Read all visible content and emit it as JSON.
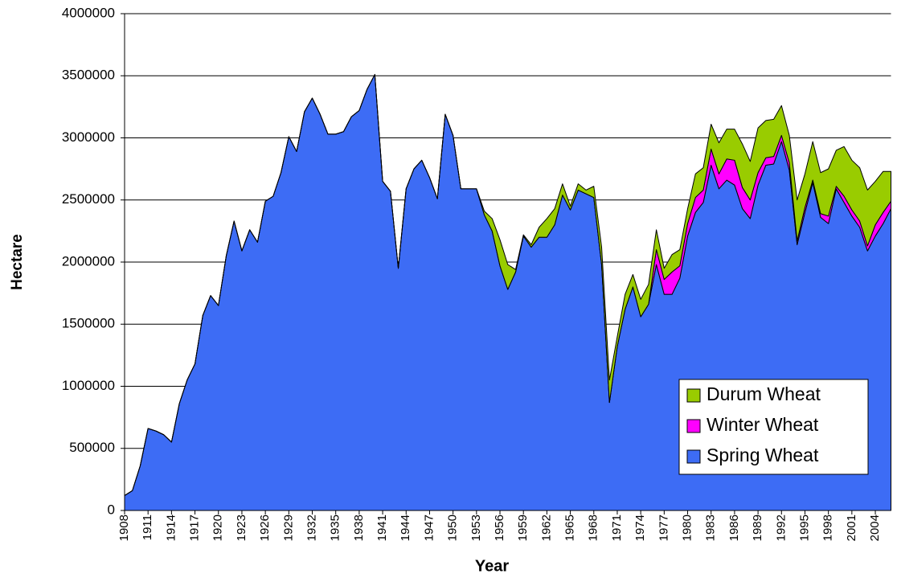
{
  "chart_data": {
    "type": "area",
    "stacked": true,
    "x_label": "Year",
    "y_label": "Hectare",
    "x": [
      1908,
      1909,
      1910,
      1911,
      1912,
      1913,
      1914,
      1915,
      1916,
      1917,
      1918,
      1919,
      1920,
      1921,
      1922,
      1923,
      1924,
      1925,
      1926,
      1927,
      1928,
      1929,
      1930,
      1931,
      1932,
      1933,
      1934,
      1935,
      1936,
      1937,
      1938,
      1939,
      1940,
      1941,
      1942,
      1943,
      1944,
      1945,
      1946,
      1947,
      1948,
      1949,
      1950,
      1951,
      1952,
      1953,
      1954,
      1955,
      1956,
      1957,
      1958,
      1959,
      1960,
      1961,
      1962,
      1963,
      1964,
      1965,
      1966,
      1967,
      1968,
      1969,
      1970,
      1971,
      1972,
      1973,
      1974,
      1975,
      1976,
      1977,
      1978,
      1979,
      1980,
      1981,
      1982,
      1983,
      1984,
      1985,
      1986,
      1987,
      1988,
      1989,
      1990,
      1991,
      1992,
      1993,
      1994,
      1995,
      1996,
      1997,
      1998,
      1999,
      2000,
      2001,
      2002,
      2003,
      2004,
      2005,
      2006
    ],
    "xlim": [
      1908,
      2006
    ],
    "xticks": [
      1908,
      1911,
      1914,
      1917,
      1920,
      1923,
      1926,
      1929,
      1932,
      1935,
      1938,
      1941,
      1944,
      1947,
      1950,
      1953,
      1956,
      1959,
      1962,
      1965,
      1968,
      1971,
      1974,
      1977,
      1980,
      1983,
      1986,
      1989,
      1992,
      1995,
      1998,
      2001,
      2004
    ],
    "ylim": [
      0,
      4000000
    ],
    "yticks": [
      0,
      500000,
      1000000,
      1500000,
      2000000,
      2500000,
      3000000,
      3500000,
      4000000
    ],
    "grid": true,
    "legend": "lower right",
    "series": [
      {
        "name": "Spring Wheat",
        "color": "#3d6cf5",
        "values": [
          120000,
          160000,
          360000,
          660000,
          640000,
          610000,
          550000,
          860000,
          1050000,
          1180000,
          1570000,
          1730000,
          1650000,
          2050000,
          2330000,
          2090000,
          2260000,
          2160000,
          2490000,
          2530000,
          2720000,
          3010000,
          2890000,
          3210000,
          3320000,
          3190000,
          3030000,
          3030000,
          3050000,
          3170000,
          3220000,
          3390000,
          3510000,
          2650000,
          2570000,
          1950000,
          2590000,
          2750000,
          2820000,
          2680000,
          2510000,
          3190000,
          3020000,
          2590000,
          2590000,
          2590000,
          2380000,
          2250000,
          1970000,
          1780000,
          1920000,
          2210000,
          2120000,
          2200000,
          2200000,
          2300000,
          2540000,
          2420000,
          2580000,
          2550000,
          2520000,
          1980000,
          870000,
          1320000,
          1620000,
          1800000,
          1560000,
          1660000,
          1980000,
          1740000,
          1740000,
          1870000,
          2210000,
          2400000,
          2480000,
          2780000,
          2590000,
          2660000,
          2620000,
          2430000,
          2350000,
          2620000,
          2780000,
          2790000,
          2970000,
          2740000,
          2140000,
          2400000,
          2640000,
          2360000,
          2310000,
          2590000,
          2480000,
          2370000,
          2280000,
          2090000,
          2210000,
          2310000,
          2430000
        ]
      },
      {
        "name": "Winter Wheat",
        "color": "#ff00ff",
        "values": [
          0,
          0,
          0,
          0,
          0,
          0,
          0,
          0,
          0,
          0,
          0,
          0,
          0,
          0,
          0,
          0,
          0,
          0,
          0,
          0,
          0,
          0,
          0,
          0,
          0,
          0,
          0,
          0,
          0,
          0,
          0,
          0,
          0,
          0,
          0,
          0,
          0,
          0,
          0,
          0,
          0,
          0,
          0,
          0,
          0,
          0,
          0,
          0,
          0,
          0,
          0,
          0,
          0,
          0,
          0,
          0,
          0,
          0,
          0,
          0,
          0,
          0,
          0,
          0,
          0,
          0,
          0,
          0,
          120000,
          120000,
          180000,
          100000,
          100000,
          120000,
          100000,
          130000,
          120000,
          170000,
          200000,
          170000,
          150000,
          100000,
          60000,
          60000,
          50000,
          60000,
          30000,
          40000,
          20000,
          30000,
          60000,
          20000,
          50000,
          50000,
          50000,
          40000,
          90000,
          90000,
          60000
        ]
      },
      {
        "name": "Durum Wheat",
        "color": "#99cc00",
        "values": [
          0,
          0,
          0,
          0,
          0,
          0,
          0,
          0,
          0,
          0,
          0,
          0,
          0,
          0,
          0,
          0,
          0,
          0,
          0,
          0,
          0,
          0,
          0,
          0,
          0,
          0,
          0,
          0,
          0,
          0,
          0,
          0,
          0,
          0,
          0,
          0,
          0,
          0,
          0,
          0,
          0,
          0,
          0,
          0,
          0,
          0,
          30000,
          100000,
          210000,
          200000,
          20000,
          10000,
          20000,
          80000,
          150000,
          130000,
          90000,
          30000,
          50000,
          30000,
          90000,
          140000,
          180000,
          80000,
          120000,
          100000,
          140000,
          160000,
          160000,
          90000,
          140000,
          130000,
          120000,
          190000,
          180000,
          200000,
          250000,
          240000,
          250000,
          350000,
          310000,
          360000,
          300000,
          300000,
          240000,
          220000,
          330000,
          270000,
          310000,
          330000,
          380000,
          290000,
          400000,
          400000,
          430000,
          450000,
          350000,
          330000,
          240000
        ]
      }
    ]
  }
}
